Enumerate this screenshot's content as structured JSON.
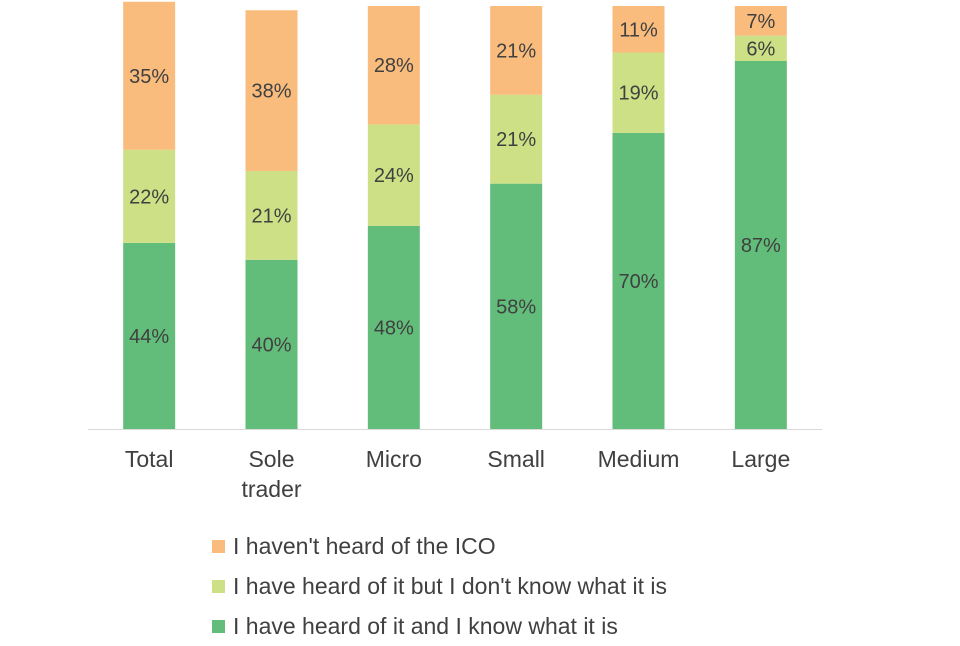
{
  "chart_data": {
    "type": "bar",
    "stacked": true,
    "percent": true,
    "ylim": [
      0,
      100
    ],
    "grid": false,
    "legend_position": "bottom",
    "categories": [
      "Total",
      "Sole\ntrader",
      "Micro",
      "Small",
      "Medium",
      "Large"
    ],
    "series": [
      {
        "name": "I have heard of it and I know what it is",
        "color": "#62bd7a",
        "values": [
          44,
          40,
          48,
          58,
          70,
          87
        ]
      },
      {
        "name": "I have heard of it but I don't know what it is",
        "color": "#cde085",
        "values": [
          22,
          21,
          24,
          21,
          19,
          6
        ]
      },
      {
        "name": "I haven't heard of the ICO",
        "color": "#f9bc7d",
        "values": [
          35,
          38,
          28,
          21,
          11,
          7
        ]
      }
    ],
    "legend_order": [
      2,
      1,
      0
    ]
  },
  "colors": {
    "axis": "#d9d9d9",
    "text": "#404040"
  }
}
